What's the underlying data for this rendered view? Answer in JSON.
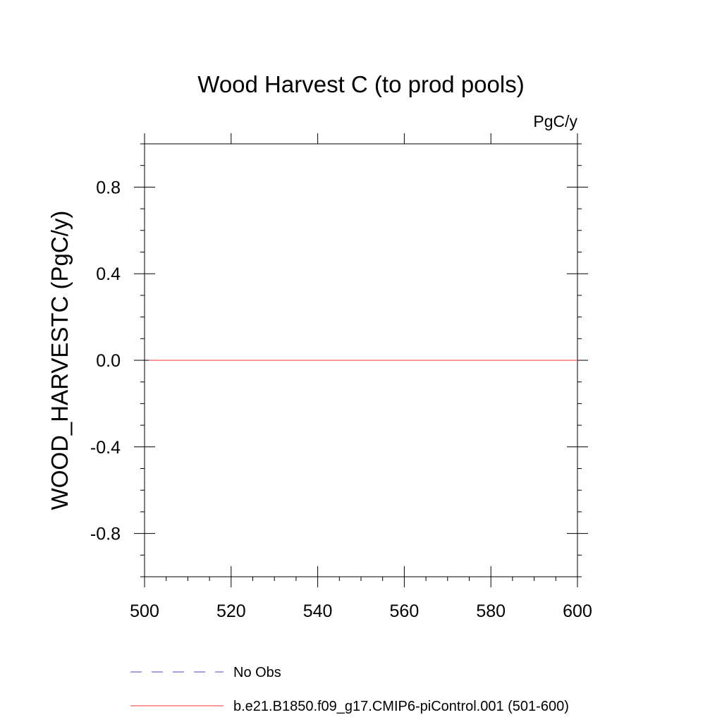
{
  "chart_data": {
    "type": "line",
    "title": "Wood Harvest C (to prod pools)",
    "units": "PgC/y",
    "ylabel": "WOOD_HARVESTC  (PgC/y)",
    "xlabel": "",
    "xlim": [
      500,
      600
    ],
    "ylim": [
      -1.0,
      1.0
    ],
    "x_ticks": [
      "500",
      "520",
      "540",
      "560",
      "580",
      "600"
    ],
    "y_ticks": [
      "0.8",
      "0.4",
      "0.0",
      "-0.4",
      "-0.8"
    ],
    "grid": false,
    "legend_position": "bottom",
    "series": [
      {
        "name": "No Obs",
        "color": "#7b68c8",
        "dash": "dashed",
        "x": [],
        "y": []
      },
      {
        "name": "b.e21.B1850.f09_g17.CMIP6-piControl.001 (501-600)",
        "color": "#ff5a5a",
        "dash": "solid",
        "x": [
          501,
          600
        ],
        "y": [
          0.0,
          0.0
        ]
      }
    ]
  }
}
